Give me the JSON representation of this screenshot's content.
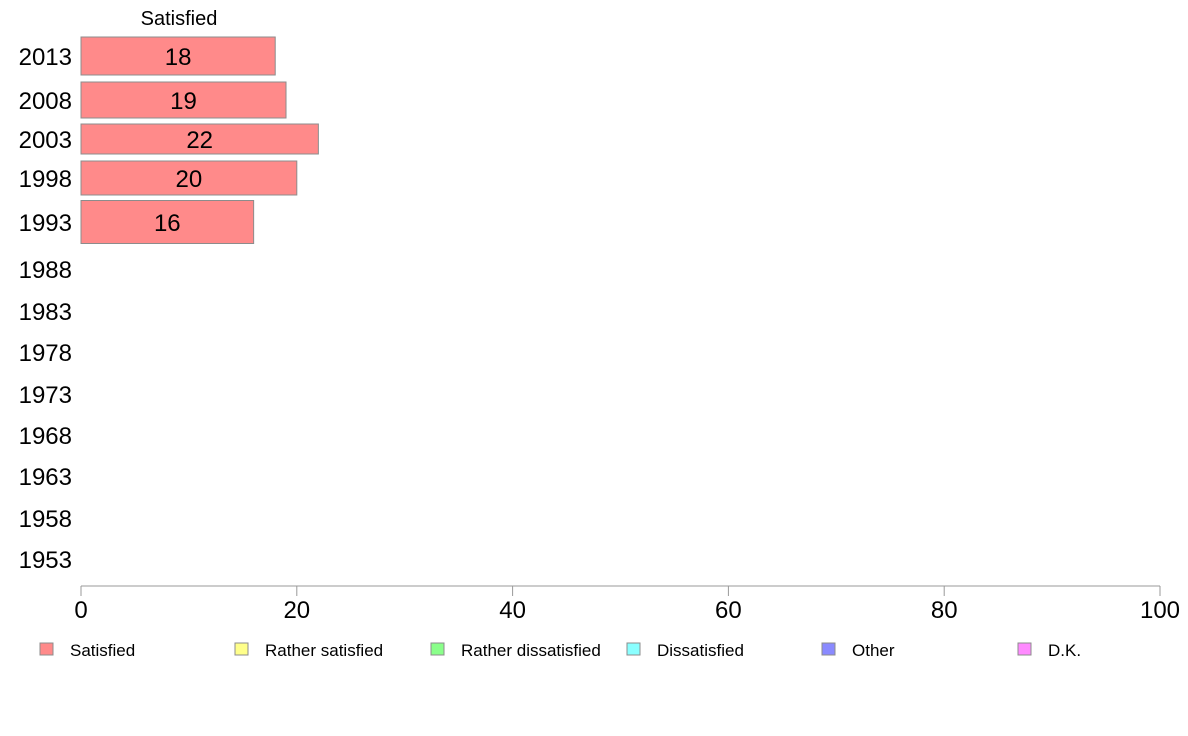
{
  "chart_data": {
    "type": "bar",
    "orientation": "horizontal",
    "stacked": true,
    "categories": [
      "2013",
      "2008",
      "2003",
      "1998",
      "1993",
      "1988",
      "1983",
      "1978",
      "1973",
      "1968",
      "1963",
      "1958",
      "1953"
    ],
    "series": [
      {
        "name": "Satisfied",
        "color": "#ff8a8a",
        "values": [
          18,
          19,
          22,
          20,
          16,
          null,
          null,
          null,
          null,
          null,
          null,
          null,
          null
        ]
      },
      {
        "name": "Rather satisfied",
        "color": "#ffff8a",
        "values": [
          null,
          null,
          null,
          null,
          null,
          null,
          null,
          null,
          null,
          null,
          null,
          null,
          null
        ]
      },
      {
        "name": "Rather dissatisfied",
        "color": "#8aff8a",
        "values": [
          null,
          null,
          null,
          null,
          null,
          null,
          null,
          null,
          null,
          null,
          null,
          null,
          null
        ]
      },
      {
        "name": "Dissatisfied",
        "color": "#8affff",
        "values": [
          null,
          null,
          null,
          null,
          null,
          null,
          null,
          null,
          null,
          null,
          null,
          null,
          null
        ]
      },
      {
        "name": "Other",
        "color": "#8a8aff",
        "values": [
          null,
          null,
          null,
          null,
          null,
          null,
          null,
          null,
          null,
          null,
          null,
          null,
          null
        ]
      },
      {
        "name": "D.K.",
        "color": "#ff8aff",
        "values": [
          null,
          null,
          null,
          null,
          null,
          null,
          null,
          null,
          null,
          null,
          null,
          null,
          null
        ]
      }
    ],
    "data_labels": [
      "18",
      "19",
      "22",
      "20",
      "16"
    ],
    "column_header": "Satisfied",
    "xlim": [
      0,
      100
    ],
    "xticks": [
      "0",
      "20",
      "40",
      "60",
      "80",
      "100"
    ],
    "grid": false,
    "legend_position": "bottom"
  }
}
